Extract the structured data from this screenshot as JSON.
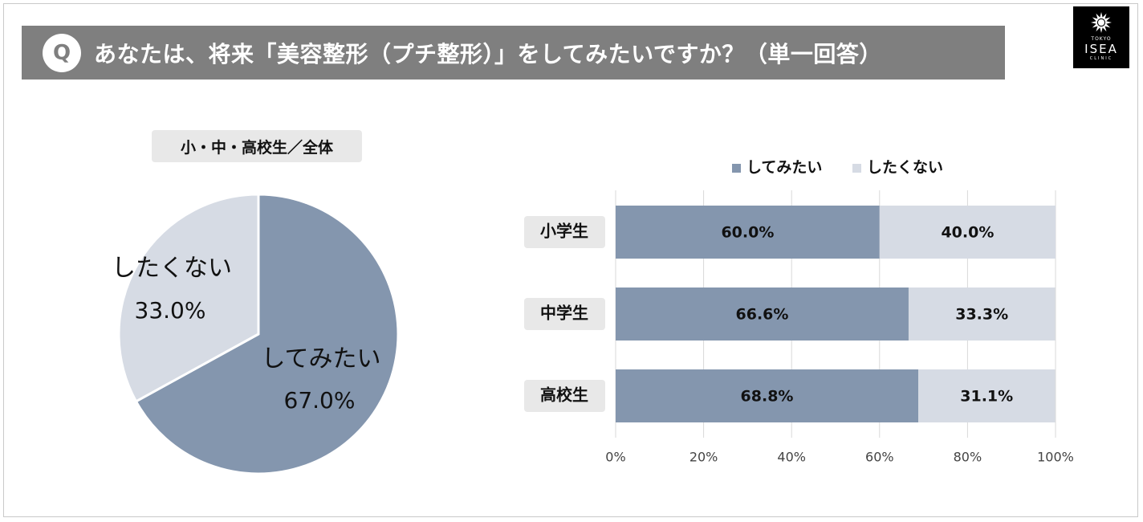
{
  "header": {
    "badge": "Q",
    "title": "あなたは、将来「美容整形（プチ整形）」をしてみたいですか？（単一回答）"
  },
  "logo": {
    "tokyo": "TOKYO",
    "name": "ISEA",
    "clinic": "CLINIC"
  },
  "colors": {
    "yes": "#8496ae",
    "no": "#d6dbe4",
    "header": "#7f7f7f",
    "label_bg": "#e8e8e8"
  },
  "chart_data": [
    {
      "type": "pie",
      "title": "小・中・高校生／全体",
      "slices": [
        {
          "label": "してみたい",
          "value": 67.0,
          "value_label": "67.0%"
        },
        {
          "label": "したくない",
          "value": 33.0,
          "value_label": "33.0%"
        }
      ]
    },
    {
      "type": "bar",
      "orientation": "horizontal",
      "stacked": "100%",
      "legend": [
        "してみたい",
        "したくない"
      ],
      "legend_position": "top",
      "categories": [
        "小学生",
        "中学生",
        "高校生"
      ],
      "series": [
        {
          "name": "してみたい",
          "values": [
            60.0,
            66.6,
            68.8
          ],
          "labels": [
            "60.0%",
            "66.6%",
            "68.8%"
          ]
        },
        {
          "name": "したくない",
          "values": [
            40.0,
            33.3,
            31.1
          ],
          "labels": [
            "40.0%",
            "33.3%",
            "31.1%"
          ]
        }
      ],
      "xlim": [
        0,
        100
      ],
      "xticks": [
        "0%",
        "20%",
        "40%",
        "60%",
        "80%",
        "100%"
      ],
      "grid": true
    }
  ]
}
